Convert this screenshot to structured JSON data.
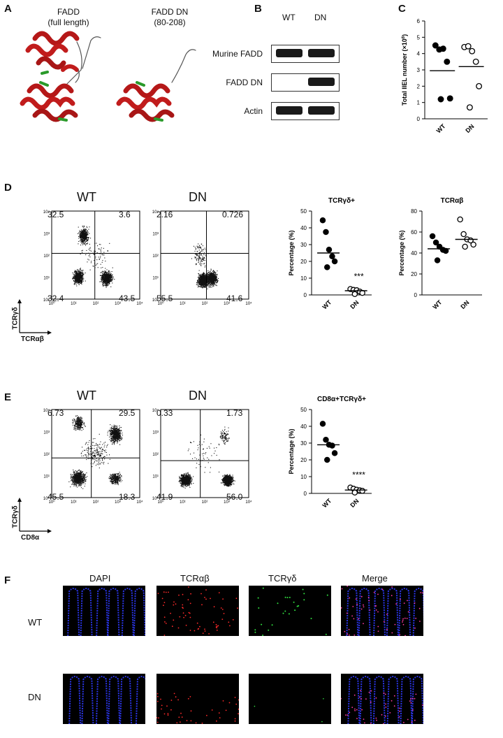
{
  "panels": {
    "a": "A",
    "b": "B",
    "c": "C",
    "d": "D",
    "e": "E",
    "f": "F"
  },
  "panel_a": {
    "title_full_1": "FADD",
    "title_full_2": "(full length)",
    "title_dn_1": "FADD DN",
    "title_dn_2": "(80-208)"
  },
  "panel_b": {
    "col_wt": "WT",
    "col_dn": "DN",
    "rows": [
      "Murine FADD",
      "FADD DN",
      "Actin"
    ]
  },
  "flow_d": {
    "titles": [
      "WT",
      "DN"
    ],
    "wt": {
      "ul": "32.5",
      "ur": "3.6",
      "ll": "32.4",
      "lr": "43.5"
    },
    "dn": {
      "ul": "2.16",
      "ur": "0.726",
      "ll": "55.5",
      "lr": "41.6"
    },
    "y_axis": "TCRγδ",
    "x_axis": "TCRαβ"
  },
  "flow_e": {
    "titles": [
      "WT",
      "DN"
    ],
    "wt": {
      "ul": "6.73",
      "ur": "29.5",
      "ll": "45.5",
      "lr": "18.3"
    },
    "dn": {
      "ul": "0.33",
      "ur": "1.73",
      "ll": "41.9",
      "lr": "56.0"
    },
    "y_axis": "TCRγδ",
    "x_axis": "CD8α"
  },
  "tick_labels": {
    "y": [
      "10⁰",
      "10¹",
      "10²",
      "10³",
      "10⁴"
    ],
    "x": [
      "10⁰",
      "10¹",
      "10²",
      "10³",
      "10⁴"
    ]
  },
  "panel_f": {
    "cols": [
      "DAPI",
      "TCRαβ",
      "TCRγδ",
      "Merge"
    ],
    "rows": [
      "WT",
      "DN"
    ]
  },
  "chart_data": [
    {
      "id": "C",
      "type": "scatter",
      "title": "",
      "ylabel": "Total IIEL number (×10⁶)",
      "ylabel_main": "Total IIEL number (×10",
      "ylabel_sup": "6",
      "ylabel_end": ")",
      "categories": [
        "WT",
        "DN"
      ],
      "ylim": [
        0,
        6
      ],
      "yticks": [
        0,
        1,
        2,
        3,
        4,
        5,
        6
      ],
      "series": [
        {
          "values": [
            4.5,
            4.25,
            4.3,
            3.5,
            1.25,
            1.2
          ],
          "fill": "filled"
        },
        {
          "values": [
            4.4,
            4.45,
            4.15,
            3.5,
            2.0,
            0.7
          ],
          "fill": "open"
        }
      ],
      "means": [
        2.95,
        3.2
      ]
    },
    {
      "id": "D1",
      "type": "scatter",
      "title": "TCRγδ+",
      "ylabel": "Percentage (%)",
      "categories": [
        "WT",
        "DN"
      ],
      "ylim": [
        0,
        50
      ],
      "yticks": [
        0,
        10,
        20,
        30,
        40,
        50
      ],
      "series": [
        {
          "values": [
            44.5,
            37.5,
            27,
            23,
            20,
            16.5
          ],
          "fill": "filled"
        },
        {
          "values": [
            3.5,
            3.0,
            2.8,
            2.0,
            1.2,
            0.5
          ],
          "fill": "open"
        }
      ],
      "means": [
        25,
        2.5
      ],
      "annotation": "***"
    },
    {
      "id": "D2",
      "type": "scatter",
      "title": "TCRαβ",
      "ylabel": "Percentage (%)",
      "categories": [
        "WT",
        "DN"
      ],
      "ylim": [
        0,
        80
      ],
      "yticks": [
        0,
        20,
        40,
        60,
        80
      ],
      "series": [
        {
          "values": [
            56,
            50,
            46,
            43,
            42,
            33
          ],
          "fill": "filled"
        },
        {
          "values": [
            72,
            58,
            53,
            52,
            48,
            46
          ],
          "fill": "open"
        }
      ],
      "means": [
        44,
        53
      ]
    },
    {
      "id": "E1",
      "type": "scatter",
      "title": "CD8α+TCRγδ+",
      "ylabel": "Percentage (%)",
      "categories": [
        "WT",
        "DN"
      ],
      "ylim": [
        0,
        50
      ],
      "yticks": [
        0,
        10,
        20,
        30,
        40,
        50
      ],
      "series": [
        {
          "values": [
            41.5,
            32,
            29,
            28.5,
            24,
            20
          ],
          "fill": "filled"
        },
        {
          "values": [
            3.5,
            2.8,
            2.2,
            1.8,
            1.5,
            0.5
          ],
          "fill": "open"
        }
      ],
      "means": [
        29,
        2
      ],
      "annotation": "****"
    }
  ]
}
